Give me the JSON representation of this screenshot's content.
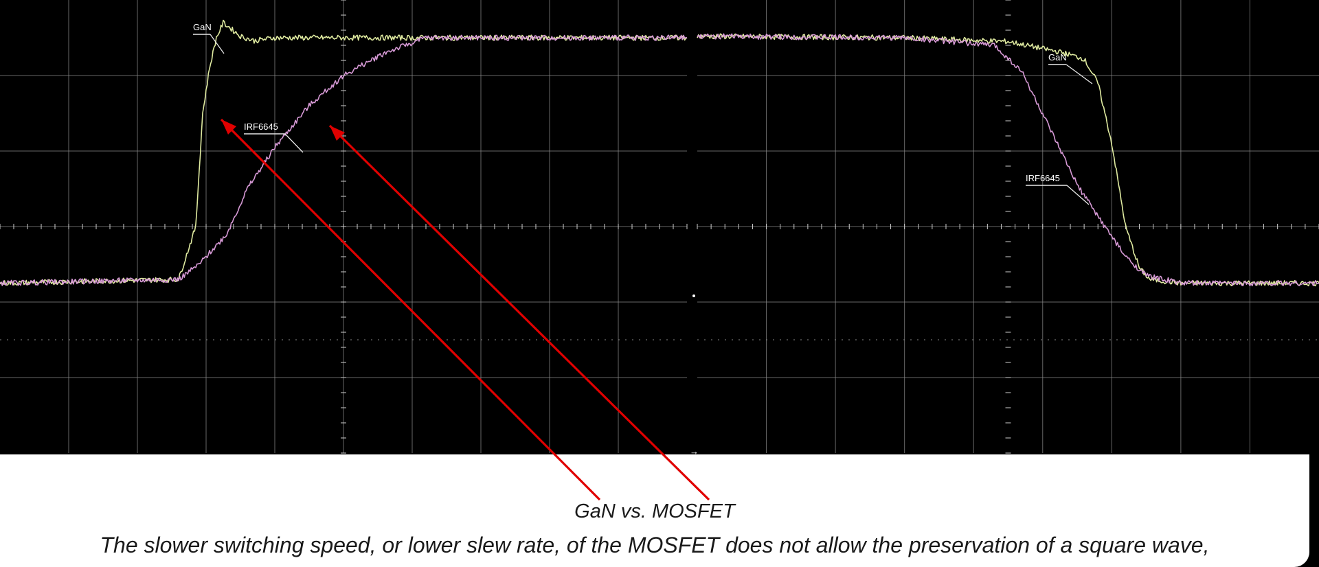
{
  "caption": {
    "title": "GaN vs. MOSFET",
    "body": "The slower switching speed, or lower slew rate, of the MOSFET does not allow the preservation of a square wave,"
  },
  "colors": {
    "background": "#000000",
    "grid": "#8a8a8a",
    "gan_trace": "#dfeaa0",
    "irf_trace": "#d79ad6",
    "arrow": "#e00000",
    "caption_bg": "#ffffff"
  },
  "chart_data": {
    "type": "line",
    "title": "",
    "xlabel": "",
    "ylabel": "",
    "grid": true,
    "legend": "none",
    "panels": [
      {
        "name": "rising edge",
        "x_divisions": [
          0,
          10
        ],
        "y_divisions": [
          0,
          6
        ],
        "series": [
          {
            "name": "GaN",
            "x": [
              0,
              2.6,
              2.85,
              2.95,
              3.05,
              3.15,
              3.25,
              3.35,
              3.5,
              3.7,
              4.0,
              5.0,
              7.0,
              10.0
            ],
            "y": [
              2.25,
              2.3,
              3.0,
              4.5,
              5.1,
              5.5,
              5.7,
              5.63,
              5.52,
              5.46,
              5.5,
              5.5,
              5.5,
              5.5
            ]
          },
          {
            "name": "IRF6645",
            "x": [
              0,
              2.6,
              2.9,
              3.3,
              3.6,
              4.0,
              4.5,
              5.0,
              5.6,
              6.2,
              10.0
            ],
            "y": [
              2.25,
              2.3,
              2.5,
              2.9,
              3.5,
              4.05,
              4.6,
              5.0,
              5.3,
              5.5,
              5.5
            ]
          }
        ]
      },
      {
        "name": "falling edge",
        "x_divisions": [
          0,
          9
        ],
        "y_divisions": [
          0,
          6
        ],
        "series": [
          {
            "name": "GaN",
            "x": [
              0,
              3.0,
              4.5,
              5.3,
              5.6,
              5.8,
              6.0,
              6.2,
              6.4,
              6.55,
              7.0,
              9.0
            ],
            "y": [
              5.52,
              5.5,
              5.45,
              5.3,
              5.22,
              4.9,
              4.1,
              3.0,
              2.45,
              2.3,
              2.25,
              2.25
            ]
          },
          {
            "name": "IRF6645",
            "x": [
              0,
              3.0,
              4.3,
              4.7,
              5.1,
              5.5,
              5.9,
              6.2,
              6.5,
              7.0,
              9.0
            ],
            "y": [
              5.52,
              5.5,
              5.4,
              5.05,
              4.3,
              3.55,
              3.0,
              2.6,
              2.35,
              2.25,
              2.25
            ]
          }
        ]
      }
    ],
    "annotations": [
      "GaN",
      "IRF6645",
      "GaN",
      "IRF6645"
    ]
  }
}
